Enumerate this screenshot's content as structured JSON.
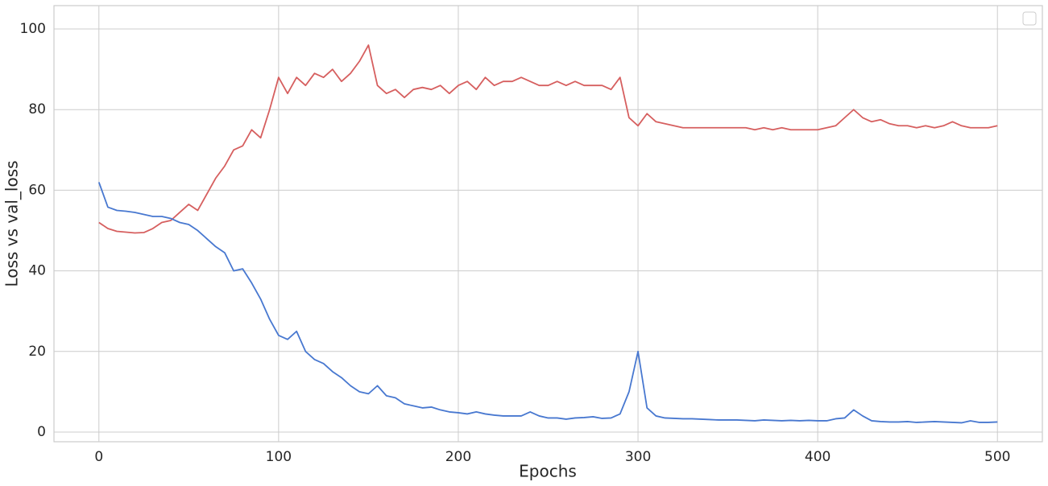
{
  "chart_data": {
    "type": "line",
    "xlabel": "Epochs",
    "ylabel": "Loss vs val_loss",
    "x": [
      0,
      5,
      10,
      15,
      20,
      25,
      30,
      35,
      40,
      45,
      50,
      55,
      60,
      65,
      70,
      75,
      80,
      85,
      90,
      95,
      100,
      105,
      110,
      115,
      120,
      125,
      130,
      135,
      140,
      145,
      150,
      155,
      160,
      165,
      170,
      175,
      180,
      185,
      190,
      195,
      200,
      205,
      210,
      215,
      220,
      225,
      230,
      235,
      240,
      245,
      250,
      255,
      260,
      265,
      270,
      275,
      280,
      285,
      290,
      295,
      300,
      305,
      310,
      315,
      320,
      325,
      330,
      335,
      340,
      345,
      350,
      355,
      360,
      365,
      370,
      375,
      380,
      385,
      390,
      395,
      400,
      405,
      410,
      415,
      420,
      425,
      430,
      435,
      440,
      445,
      450,
      455,
      460,
      465,
      470,
      475,
      480,
      485,
      490,
      495,
      500
    ],
    "series": [
      {
        "color": "#d65f5f",
        "values": [
          52,
          50.5,
          49.8,
          49.6,
          49.4,
          49.5,
          50.5,
          52,
          52.5,
          54.5,
          56.5,
          55,
          59,
          63,
          66,
          70,
          71,
          75,
          73,
          80,
          88,
          84,
          88,
          86,
          89,
          88,
          90,
          87,
          89,
          92,
          96,
          86,
          84,
          85,
          83,
          85,
          85.5,
          85,
          86,
          84,
          86,
          87,
          85,
          88,
          86,
          87,
          87,
          88,
          87,
          86,
          86,
          87,
          86,
          87,
          86,
          86,
          86,
          85,
          88,
          78,
          76,
          79,
          77,
          76.5,
          76,
          75.5,
          75.5,
          75.5,
          75.5,
          75.5,
          75.5,
          75.5,
          75.5,
          75,
          75.5,
          75,
          75.5,
          75,
          75,
          75,
          75,
          75.5,
          76,
          78,
          80,
          78,
          77,
          77.5,
          76.5,
          76,
          76,
          75.5,
          76,
          75.5,
          76,
          77,
          76,
          75.5,
          75.5,
          75.5,
          76
        ]
      },
      {
        "color": "#4878d0",
        "values": [
          62,
          55.8,
          55,
          54.8,
          54.5,
          54,
          53.5,
          53.5,
          53,
          52,
          51.5,
          50,
          48,
          46,
          44.5,
          40,
          40.5,
          37,
          33,
          28,
          24,
          23,
          25,
          20,
          18,
          17,
          15,
          13.5,
          11.5,
          10,
          9.5,
          11.5,
          9,
          8.5,
          7,
          6.5,
          6,
          6.2,
          5.5,
          5,
          4.8,
          4.5,
          5,
          4.5,
          4.2,
          4,
          4,
          4,
          5,
          4,
          3.5,
          3.5,
          3.2,
          3.5,
          3.6,
          3.8,
          3.4,
          3.5,
          4.5,
          10,
          20,
          6,
          4,
          3.5,
          3.4,
          3.3,
          3.3,
          3.2,
          3.1,
          3,
          3,
          3,
          2.9,
          2.8,
          3,
          2.9,
          2.8,
          2.9,
          2.8,
          2.9,
          2.8,
          2.8,
          3.3,
          3.5,
          5.5,
          4,
          2.8,
          2.6,
          2.5,
          2.5,
          2.6,
          2.4,
          2.5,
          2.6,
          2.5,
          2.4,
          2.3,
          2.8,
          2.4,
          2.4,
          2.5
        ]
      }
    ],
    "xlim": [
      -25,
      525
    ],
    "ylim": [
      -2.4,
      105.8
    ],
    "xticks": [
      0,
      100,
      200,
      300,
      400,
      500
    ],
    "yticks": [
      0,
      20,
      40,
      60,
      80,
      100
    ],
    "grid": true,
    "legend": "upper right"
  }
}
